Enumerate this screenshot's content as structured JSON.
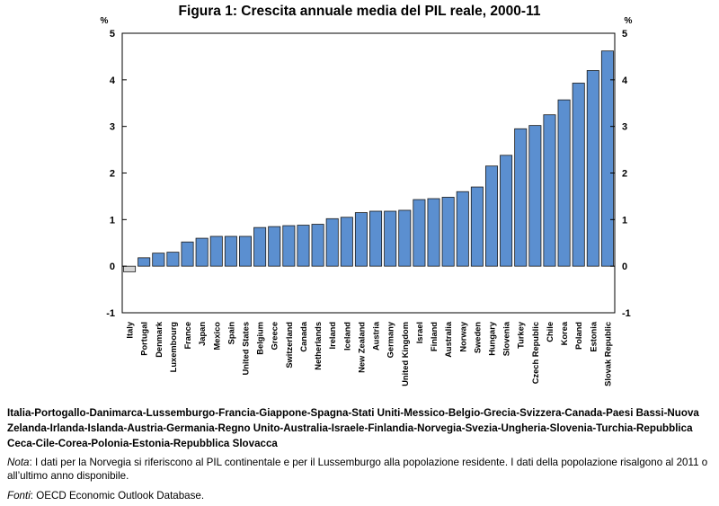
{
  "chart_data": {
    "type": "bar",
    "title": "Figura 1: Crescita annuale media del PIL reale, 2000-11",
    "ylabel_left": "%",
    "ylabel_right": "%",
    "ylim": [
      -1,
      5
    ],
    "yticks": [
      -1,
      0,
      1,
      2,
      3,
      4,
      5
    ],
    "grid": false,
    "categories": [
      "Italy",
      "Portugal",
      "Denmark",
      "Luxembourg",
      "France",
      "Japan",
      "Mexico",
      "Spain",
      "United States",
      "Belgium",
      "Greece",
      "Switzerland",
      "Canada",
      "Netherlands",
      "Ireland",
      "Iceland",
      "New Zealand",
      "Austria",
      "Germany",
      "United Kingdom",
      "Israel",
      "Finland",
      "Australia",
      "Norway",
      "Sweden",
      "Hungary",
      "Slovenia",
      "Turkey",
      "Czech Republic",
      "Chile",
      "Korea",
      "Poland",
      "Estonia",
      "Slovak Republic"
    ],
    "values": [
      -0.12,
      0.18,
      0.28,
      0.3,
      0.52,
      0.6,
      0.64,
      0.64,
      0.64,
      0.83,
      0.85,
      0.87,
      0.88,
      0.9,
      1.02,
      1.05,
      1.15,
      1.18,
      1.18,
      1.2,
      1.43,
      1.45,
      1.48,
      1.6,
      1.7,
      2.15,
      2.38,
      2.95,
      3.02,
      3.25,
      3.57,
      3.93,
      4.2,
      4.62
    ],
    "highlight_index": 0,
    "colors": {
      "bar": "#5b8fd0",
      "highlight": "#d4d4d4",
      "stroke": "#1a1a1a"
    }
  },
  "countries_text": "Italia-Portogallo-Danimarca-Lussemburgo-Francia-Giappone-Spagna-Stati Uniti-Messico-Belgio-Grecia-Svizzera-Canada-Paesi Bassi-Nuova Zelanda-Irlanda-Islanda-Austria-Germania-Regno Unito-Australia-Israele-Finlandia-Norvegia-Svezia-Ungheria-Slovenia-Turchia-Repubblica Ceca-Cile-Corea-Polonia-Estonia-Repubblica Slovacca",
  "note": {
    "label": "Nota",
    "text": ": I dati per la Norvegia si riferiscono al PIL continentale e per il Lussemburgo alla popolazione residente. I dati della popolazione risalgono al 2011 o all’ultimo anno disponibile."
  },
  "source": {
    "label": "Fonti",
    "text": ": OECD Economic Outlook Database."
  }
}
